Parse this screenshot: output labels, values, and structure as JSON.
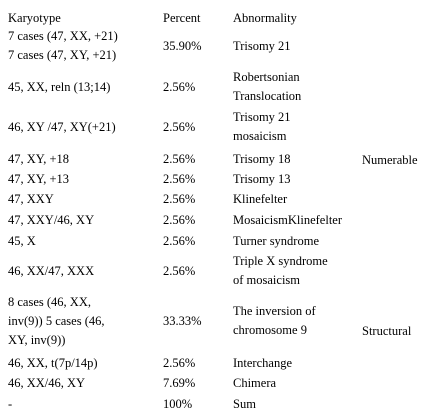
{
  "table": {
    "header": [
      "Karyotype",
      "Percent",
      "Abnormality"
    ],
    "rows": [
      [
        [
          "7 cases (47, XX, +21)",
          "7 cases (47, XY, +21)"
        ],
        "35.90%",
        "Trisomy 21"
      ],
      [
        "45, XX, reln (13;14)",
        "2.56%",
        [
          "Robertsonian",
          "Translocation"
        ]
      ],
      [
        "46, XY /47, XY(+21)",
        "2.56%",
        [
          "Trisomy 21",
          "mosaicism"
        ]
      ],
      [
        "47, XY, +18",
        "2.56%",
        "Trisomy 18"
      ],
      [
        "47, XY, +13",
        "2.56%",
        "Trisomy 13"
      ],
      [
        "47, XXY",
        "2.56%",
        "Klinefelter"
      ],
      [
        "47, XXY/46, XY",
        "2.56%",
        "MosaicismKlinefelter"
      ],
      [
        "45, X",
        "2.56%",
        "Turner syndrome"
      ],
      [
        "46, XX/47, XXX",
        "2.56%",
        [
          "Triple X syndrome",
          "of mosaicism"
        ]
      ],
      [
        [
          "8 cases (46, XX,",
          "inv(9)) 5 cases (46,",
          "XY, inv(9))"
        ],
        "33.33%",
        [
          "The inversion of",
          "chromosome 9"
        ]
      ],
      [
        "46, XX, t(7p/14p)",
        "2.56%",
        "Interchange"
      ],
      [
        "46, XX/46, XY",
        "7.69%",
        "Chimera"
      ],
      [
        "-",
        "100%",
        "Sum"
      ]
    ],
    "groups": [
      "Numerable",
      "Structural"
    ]
  }
}
